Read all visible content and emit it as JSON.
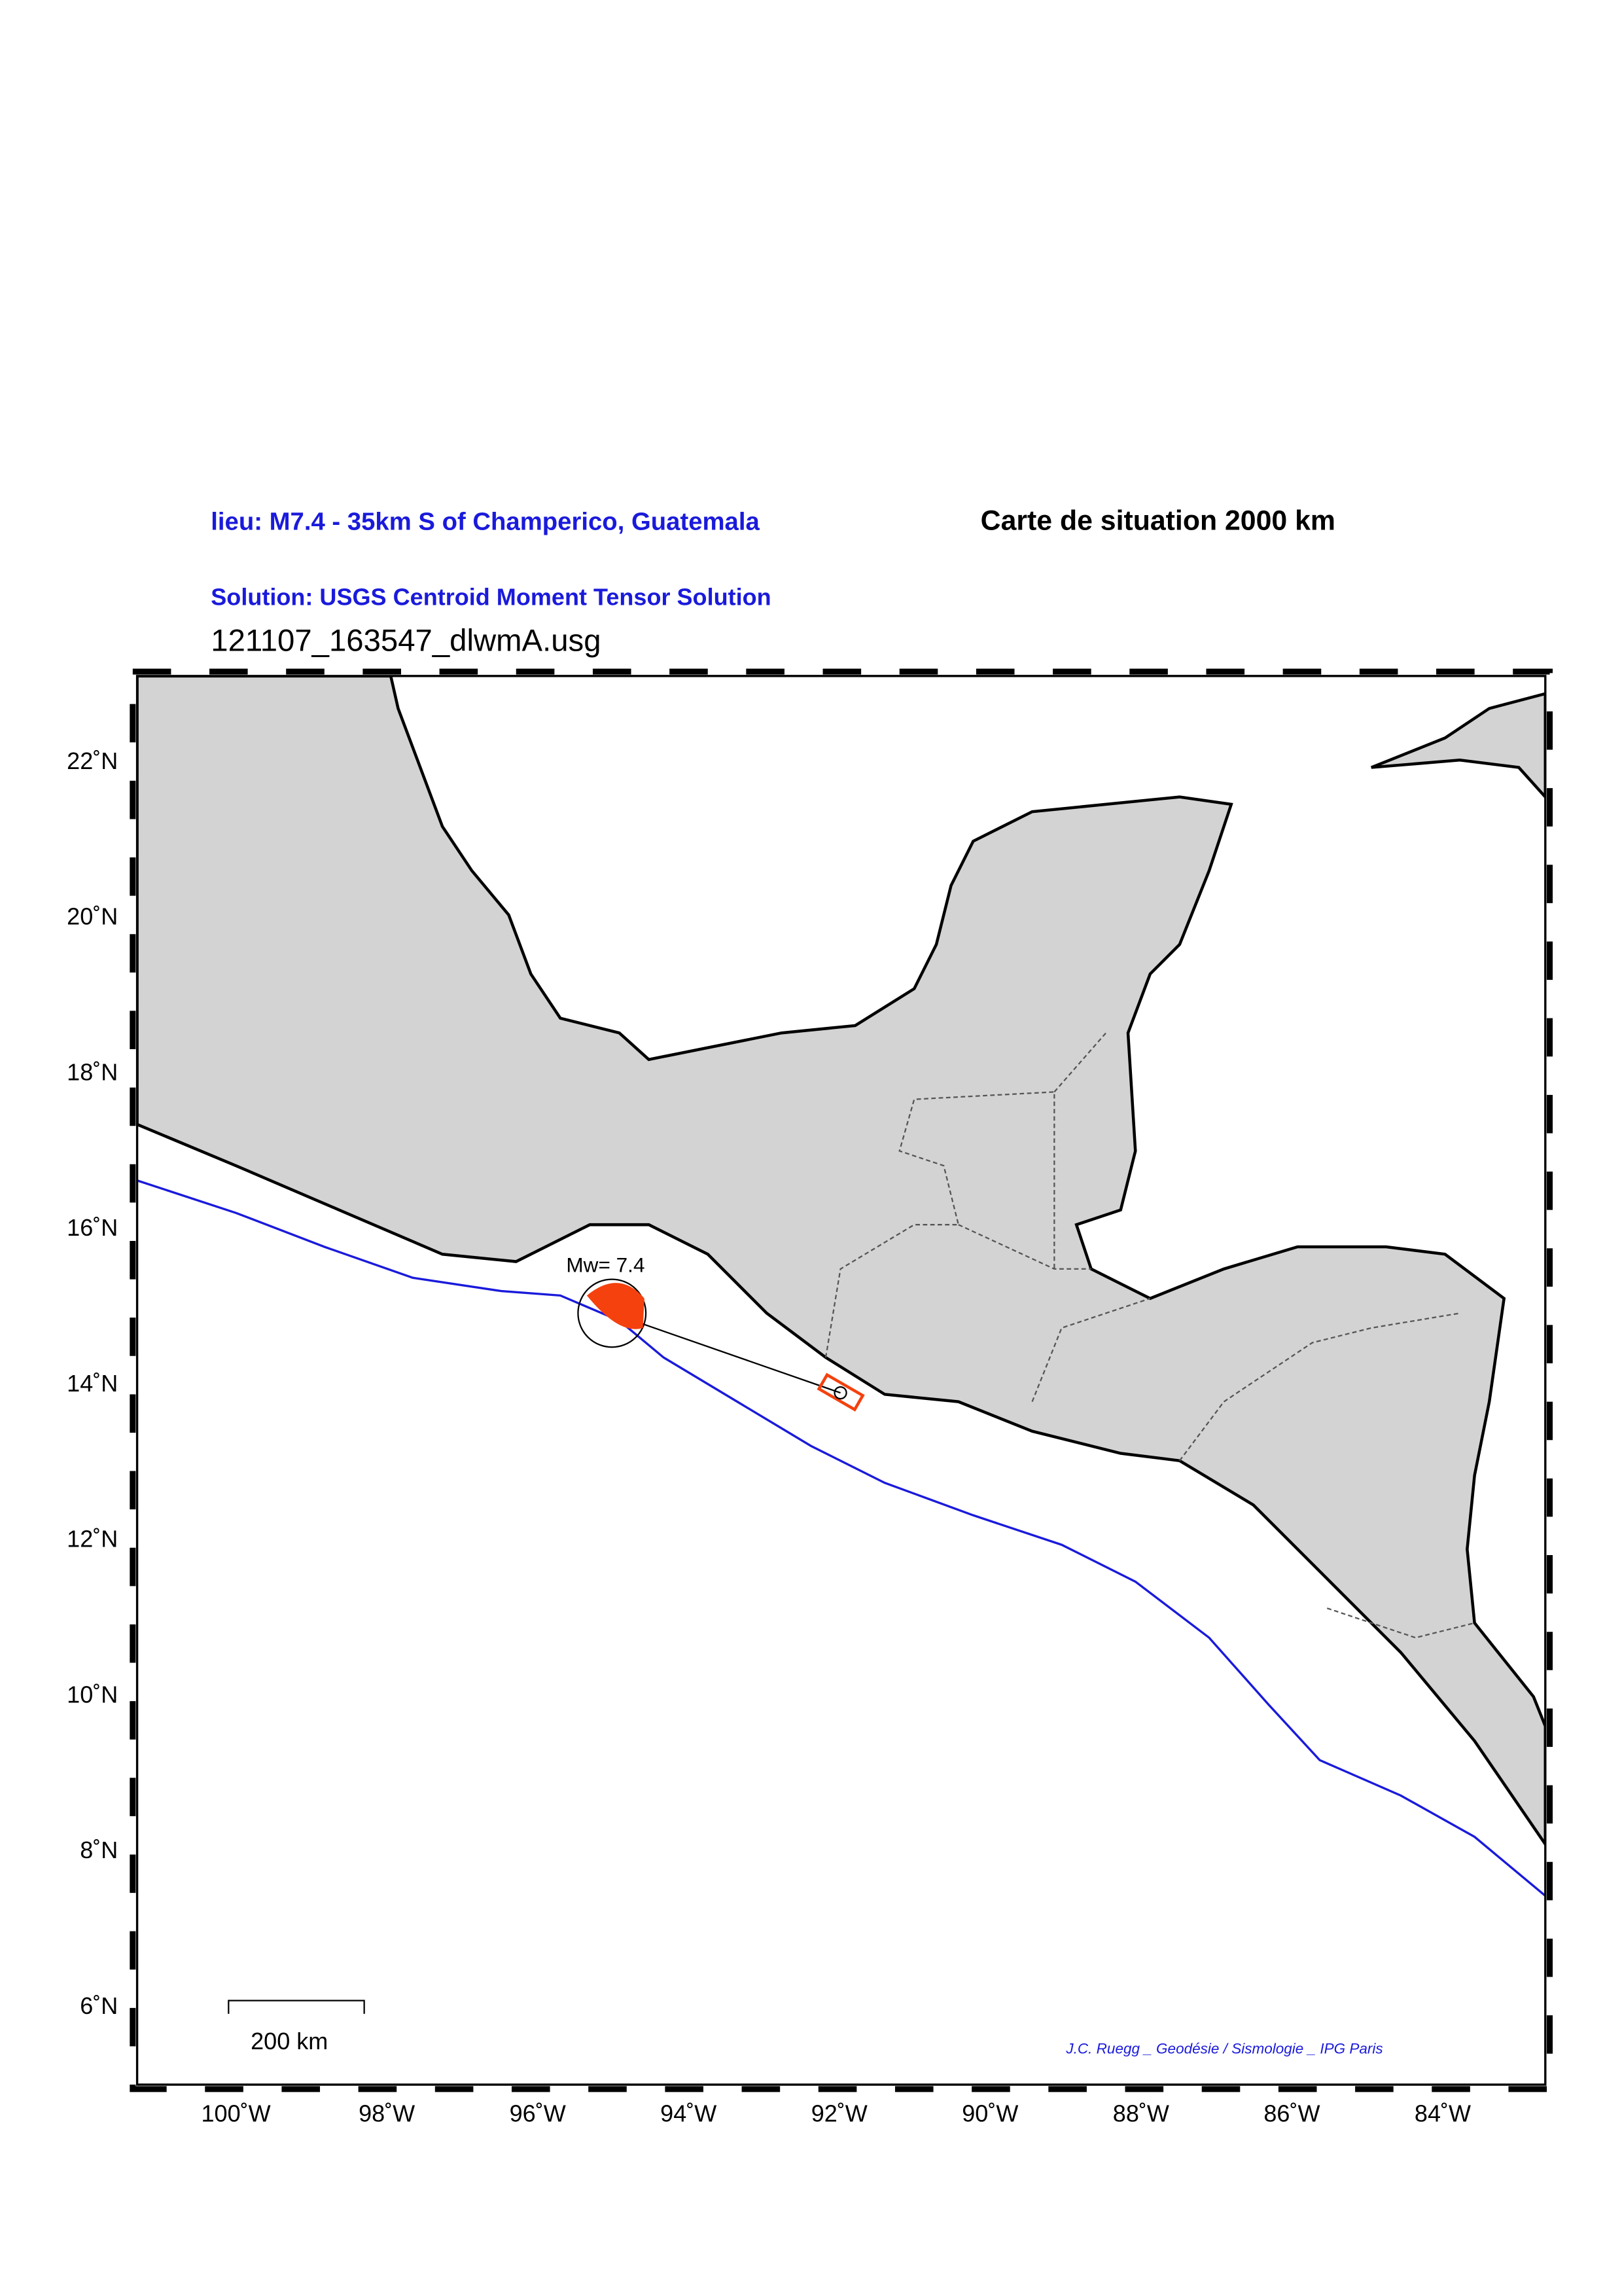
{
  "header": {
    "location": "lieu: M7.4 - 35km S of Champerico, Guatemala",
    "map_title": "Carte de situation 2000 km",
    "solution": "Solution: USGS Centroid Moment Tensor Solution",
    "file": "121107_163547_dlwmA.usg"
  },
  "map": {
    "lat_labels": [
      "22˚N",
      "20˚N",
      "18˚N",
      "16˚N",
      "14˚N",
      "12˚N",
      "10˚N",
      "8˚N",
      "6˚N"
    ],
    "lon_labels": [
      "100˚W",
      "98˚W",
      "96˚W",
      "94˚W",
      "92˚W",
      "90˚W",
      "88˚W",
      "86˚W",
      "84˚W"
    ],
    "magnitude_label": "Mw= 7.4",
    "scale_label": "200 km",
    "credit": "J.C. Ruegg _ Geodésie / Sismologie _ IPG Paris"
  }
}
